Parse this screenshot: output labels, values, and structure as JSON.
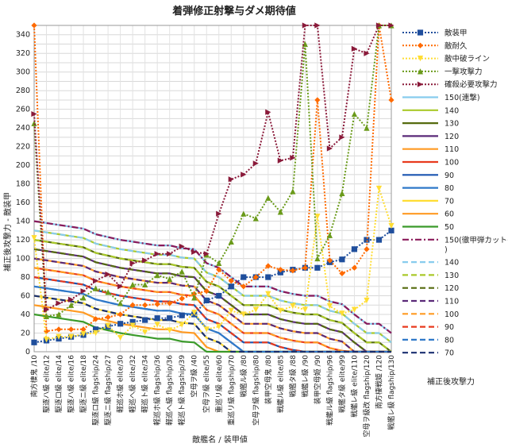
{
  "chart_data": {
    "type": "line",
    "title": "着弾修正射撃与ダメ期待値",
    "xlabel": "敵艦名 / 装甲値",
    "ylabel": "補正後攻撃力 - 敵装甲",
    "y2label": "補正後攻撃力",
    "ylim": [
      0,
      350
    ],
    "yticks": [
      0,
      20,
      40,
      60,
      80,
      100,
      120,
      140,
      160,
      180,
      200,
      220,
      240,
      260,
      280,
      300,
      320,
      340
    ],
    "categories": [
      "南方棲鬼 /10",
      "駆逐ハ級 elite/12",
      "駆逐ロ級 elite/14",
      "駆逐ハ級 elite/16",
      "駆逐ニ級 elite/18",
      "駆逐ロ級 flagship/24",
      "駆逐ニ級 flagship/27",
      "軽巡ホ級 elite/30",
      "軽巡へ級 elite/32",
      "軽巡ト級 elite/34",
      "軽巡ホ級 flagship/36",
      "軽巡へ級 flagship/36",
      "軽巡ト級 flagship/39",
      "空母ヲ級 /40",
      "空母ヲ級 elite/55",
      "重巡リ級 elite/60",
      "重巡リ級 flagship/70",
      "戦艦ル級 /80",
      "空母ヲ級 flagship/80",
      "装甲空母鬼 /80",
      "戦艦ル級 elite/85",
      "戦艦タ級 /88",
      "戦艦レ級 /90",
      "装甲空母姫 /90",
      "戦艦ル級 flagship/96",
      "戦艦タ級 elite/99",
      "戦艦レ級 elite/110",
      "空母ヲ級改 flagship/120",
      "南方棲戦姫 /120",
      "戦艦レ級 flagship/130"
    ],
    "armor": [
      10,
      12,
      14,
      16,
      18,
      24,
      27,
      30,
      32,
      34,
      36,
      36,
      39,
      40,
      55,
      60,
      70,
      80,
      80,
      80,
      85,
      88,
      90,
      90,
      96,
      99,
      110,
      120,
      120,
      130
    ],
    "power_lines": [
      {
        "name": "150(連撃)",
        "value": 150,
        "color": "#88ccee",
        "dash": "solid"
      },
      {
        "name": "140",
        "value": 140,
        "color": "#aac92a",
        "dash": "solid"
      },
      {
        "name": "130",
        "value": 130,
        "color": "#556b0f",
        "dash": "solid"
      },
      {
        "name": "120",
        "value": 120,
        "color": "#5a2a78",
        "dash": "solid"
      },
      {
        "name": "110",
        "value": 110,
        "color": "#ff9a22",
        "dash": "solid"
      },
      {
        "name": "100",
        "value": 100,
        "color": "#e83a1e",
        "dash": "solid"
      },
      {
        "name": "90",
        "value": 90,
        "color": "#1a55b0",
        "dash": "solid"
      },
      {
        "name": "80",
        "value": 80,
        "color": "#2f78c8",
        "dash": "solid"
      },
      {
        "name": "70",
        "value": 70,
        "color": "#ffdd33",
        "dash": "solid"
      },
      {
        "name": "60",
        "value": 60,
        "color": "#ff9a22",
        "dash": "solid"
      },
      {
        "name": "50",
        "value": 50,
        "color": "#3a9a2a",
        "dash": "solid"
      },
      {
        "name": "150(徹甲弾カットイン)",
        "value": 150,
        "color": "#8a1a5a",
        "dash": "dashdot"
      },
      {
        "name": "140",
        "value": 140,
        "color": "#88ccee",
        "dash": "dashed"
      },
      {
        "name": "130",
        "value": 130,
        "color": "#aac92a",
        "dash": "dashed"
      },
      {
        "name": "120",
        "value": 120,
        "color": "#556b0f",
        "dash": "dashed"
      },
      {
        "name": "110",
        "value": 110,
        "color": "#5a2a78",
        "dash": "dashed"
      },
      {
        "name": "100",
        "value": 100,
        "color": "#ff9a22",
        "dash": "dashed"
      },
      {
        "name": "90",
        "value": 90,
        "color": "#e83a1e",
        "dash": "dashed"
      },
      {
        "name": "80",
        "value": 80,
        "color": "#2f78c8",
        "dash": "dashed"
      },
      {
        "name": "70",
        "value": 70,
        "color": "#1a2f70",
        "dash": "dashed"
      }
    ],
    "series": [
      {
        "name": "敵装甲",
        "color": "#1f4e9c",
        "marker": "square",
        "dash": "dotted",
        "values": [
          10,
          12,
          14,
          16,
          18,
          24,
          27,
          30,
          32,
          34,
          36,
          36,
          39,
          40,
          55,
          60,
          70,
          80,
          80,
          80,
          85,
          88,
          90,
          90,
          96,
          99,
          110,
          120,
          120,
          130
        ]
      },
      {
        "name": "敵耐久",
        "color": "#ff6a00",
        "marker": "diamond",
        "dash": "dotted",
        "values": [
          350,
          22,
          24,
          24,
          24,
          35,
          37,
          40,
          50,
          50,
          51,
          52,
          57,
          62,
          65,
          88,
          76,
          70,
          80,
          92,
          88,
          87,
          90,
          270,
          98,
          84,
          90,
          110,
          350,
          270
        ]
      },
      {
        "name": "敵中破ライン",
        "color": "#ffdd33",
        "marker": "triangle-down",
        "dash": "dotted",
        "values": [
          122,
          13,
          16,
          16,
          19,
          20,
          28,
          15,
          28,
          21,
          29,
          23,
          29,
          42,
          24,
          27,
          44,
          40,
          45,
          62,
          44,
          49,
          45,
          145,
          49,
          41,
          45,
          55,
          175,
          135
        ]
      },
      {
        "name": "一撃攻撃力",
        "color": "#6a9a1a",
        "marker": "triangle",
        "dash": "dotted",
        "values": [
          245,
          38,
          40,
          50,
          58,
          68,
          64,
          52,
          72,
          72,
          82,
          78,
          86,
          58,
          104,
          95,
          118,
          148,
          143,
          165,
          150,
          172,
          330,
          100,
          125,
          170,
          255,
          240,
          350,
          350
        ]
      },
      {
        "name": "確殺必要攻撃力",
        "color": "#8a1a3a",
        "marker": "triangle-right",
        "dash": "dotted",
        "values": [
          255,
          45,
          52,
          56,
          65,
          76,
          83,
          70,
          95,
          98,
          105,
          105,
          113,
          107,
          105,
          148,
          185,
          190,
          202,
          257,
          205,
          208,
          350,
          350,
          218,
          230,
          325,
          320,
          350,
          350
        ]
      }
    ],
    "legend_position": "right"
  }
}
